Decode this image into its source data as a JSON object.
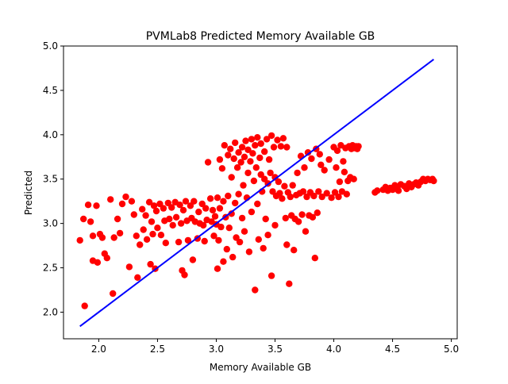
{
  "chart_data": {
    "type": "scatter",
    "title": "PVMLab8 Predicted Memory Available GB",
    "xlabel": "Memory Available GB",
    "ylabel": "Predicted",
    "xlim": [
      1.7,
      5.05
    ],
    "ylim": [
      1.7,
      5.0
    ],
    "xticks": [
      "2.0",
      "2.5",
      "3.0",
      "3.5",
      "4.0",
      "4.5",
      "5.0"
    ],
    "yticks": [
      "2.0",
      "2.5",
      "3.0",
      "3.5",
      "4.0",
      "4.5",
      "5.0"
    ],
    "grid": false,
    "legend": "none",
    "scatter_color": "#ff0000",
    "line_color": "#0000ff",
    "line": {
      "x": [
        1.84,
        4.85
      ],
      "y": [
        1.84,
        4.85
      ]
    },
    "points": [
      [
        1.84,
        2.81
      ],
      [
        1.88,
        2.07
      ],
      [
        1.87,
        3.05
      ],
      [
        1.91,
        3.21
      ],
      [
        1.93,
        3.02
      ],
      [
        1.95,
        2.86
      ],
      [
        1.95,
        2.58
      ],
      [
        1.98,
        3.2
      ],
      [
        1.99,
        2.56
      ],
      [
        2.01,
        2.88
      ],
      [
        2.03,
        2.84
      ],
      [
        2.05,
        2.66
      ],
      [
        2.07,
        2.61
      ],
      [
        2.1,
        3.27
      ],
      [
        2.12,
        2.21
      ],
      [
        2.13,
        2.84
      ],
      [
        2.16,
        3.05
      ],
      [
        2.18,
        2.89
      ],
      [
        2.2,
        3.22
      ],
      [
        2.23,
        3.3
      ],
      [
        2.26,
        2.51
      ],
      [
        2.28,
        3.25
      ],
      [
        2.3,
        3.1
      ],
      [
        2.32,
        2.86
      ],
      [
        2.33,
        2.39
      ],
      [
        2.35,
        2.76
      ],
      [
        2.37,
        3.16
      ],
      [
        2.38,
        2.93
      ],
      [
        2.4,
        3.09
      ],
      [
        2.41,
        2.82
      ],
      [
        2.43,
        3.24
      ],
      [
        2.44,
        2.54
      ],
      [
        2.45,
        3.02
      ],
      [
        2.46,
        2.88
      ],
      [
        2.47,
        3.2
      ],
      [
        2.48,
        2.49
      ],
      [
        2.49,
        3.14
      ],
      [
        2.5,
        2.95
      ],
      [
        2.52,
        3.22
      ],
      [
        2.53,
        2.87
      ],
      [
        2.55,
        3.17
      ],
      [
        2.56,
        3.03
      ],
      [
        2.57,
        2.78
      ],
      [
        2.59,
        3.23
      ],
      [
        2.6,
        3.05
      ],
      [
        2.62,
        3.18
      ],
      [
        2.63,
        2.98
      ],
      [
        2.65,
        3.24
      ],
      [
        2.66,
        3.07
      ],
      [
        2.68,
        2.79
      ],
      [
        2.69,
        3.21
      ],
      [
        2.7,
        3.0
      ],
      [
        2.71,
        2.47
      ],
      [
        2.72,
        3.15
      ],
      [
        2.73,
        2.42
      ],
      [
        2.74,
        3.25
      ],
      [
        2.75,
        3.03
      ],
      [
        2.76,
        2.81
      ],
      [
        2.78,
        3.2
      ],
      [
        2.79,
        3.06
      ],
      [
        2.8,
        2.59
      ],
      [
        2.81,
        3.25
      ],
      [
        2.82,
        3.02
      ],
      [
        2.84,
        2.83
      ],
      [
        2.85,
        3.13
      ],
      [
        2.86,
        3.0
      ],
      [
        2.88,
        3.22
      ],
      [
        2.89,
        2.98
      ],
      [
        2.9,
        2.8
      ],
      [
        2.91,
        3.17
      ],
      [
        2.92,
        3.04
      ],
      [
        2.93,
        3.69
      ],
      [
        2.95,
        3.28
      ],
      [
        2.96,
        3.02
      ],
      [
        2.97,
        3.15
      ],
      [
        2.98,
        2.86
      ],
      [
        2.99,
        3.08
      ],
      [
        3.0,
        2.99
      ],
      [
        3.01,
        2.49
      ],
      [
        3.01,
        3.29
      ],
      [
        3.02,
        2.81
      ],
      [
        3.03,
        3.17
      ],
      [
        3.03,
        3.72
      ],
      [
        3.04,
        2.96
      ],
      [
        3.05,
        3.62
      ],
      [
        3.06,
        3.25
      ],
      [
        3.06,
        2.57
      ],
      [
        3.07,
        3.88
      ],
      [
        3.08,
        3.07
      ],
      [
        3.09,
        2.71
      ],
      [
        3.1,
        3.77
      ],
      [
        3.1,
        3.31
      ],
      [
        3.11,
        2.95
      ],
      [
        3.12,
        3.84
      ],
      [
        3.13,
        3.52
      ],
      [
        3.13,
        3.11
      ],
      [
        3.14,
        2.62
      ],
      [
        3.15,
        3.73
      ],
      [
        3.16,
        3.23
      ],
      [
        3.16,
        3.91
      ],
      [
        3.17,
        2.84
      ],
      [
        3.18,
        3.63
      ],
      [
        3.19,
        3.8
      ],
      [
        3.19,
        3.33
      ],
      [
        3.2,
        2.79
      ],
      [
        3.21,
        3.69
      ],
      [
        3.22,
        3.86
      ],
      [
        3.22,
        3.06
      ],
      [
        3.23,
        3.43
      ],
      [
        3.24,
        3.75
      ],
      [
        3.24,
        2.91
      ],
      [
        3.25,
        3.93
      ],
      [
        3.26,
        3.29
      ],
      [
        3.27,
        3.83
      ],
      [
        3.27,
        3.57
      ],
      [
        3.28,
        2.68
      ],
      [
        3.29,
        3.7
      ],
      [
        3.3,
        3.95
      ],
      [
        3.3,
        3.13
      ],
      [
        3.31,
        3.79
      ],
      [
        3.32,
        3.48
      ],
      [
        3.33,
        2.25
      ],
      [
        3.33,
        3.88
      ],
      [
        3.34,
        3.63
      ],
      [
        3.35,
        3.22
      ],
      [
        3.35,
        3.97
      ],
      [
        3.36,
        2.82
      ],
      [
        3.37,
        3.74
      ],
      [
        3.38,
        3.55
      ],
      [
        3.38,
        3.9
      ],
      [
        3.39,
        3.36
      ],
      [
        3.4,
        2.72
      ],
      [
        3.41,
        3.81
      ],
      [
        3.41,
        3.5
      ],
      [
        3.42,
        3.05
      ],
      [
        3.43,
        3.95
      ],
      [
        3.44,
        3.45
      ],
      [
        3.44,
        2.87
      ],
      [
        3.45,
        3.72
      ],
      [
        3.46,
        3.57
      ],
      [
        3.47,
        2.41
      ],
      [
        3.47,
        3.99
      ],
      [
        3.48,
        3.36
      ],
      [
        3.49,
        3.86
      ],
      [
        3.5,
        3.52
      ],
      [
        3.5,
        2.98
      ],
      [
        3.51,
        3.31
      ],
      [
        3.52,
        3.94
      ],
      [
        3.53,
        3.47
      ],
      [
        3.54,
        3.34
      ],
      [
        3.55,
        3.87
      ],
      [
        3.56,
        3.28
      ],
      [
        3.57,
        3.96
      ],
      [
        3.58,
        3.42
      ],
      [
        3.59,
        3.06
      ],
      [
        3.6,
        3.86
      ],
      [
        3.6,
        2.76
      ],
      [
        3.61,
        3.35
      ],
      [
        3.62,
        2.32
      ],
      [
        3.63,
        3.3
      ],
      [
        3.64,
        3.09
      ],
      [
        3.65,
        3.43
      ],
      [
        3.66,
        2.7
      ],
      [
        3.67,
        3.05
      ],
      [
        3.68,
        3.32
      ],
      [
        3.69,
        3.57
      ],
      [
        3.7,
        3.02
      ],
      [
        3.71,
        3.34
      ],
      [
        3.72,
        3.76
      ],
      [
        3.73,
        3.1
      ],
      [
        3.74,
        3.36
      ],
      [
        3.75,
        3.63
      ],
      [
        3.76,
        2.91
      ],
      [
        3.77,
        3.3
      ],
      [
        3.78,
        3.8
      ],
      [
        3.79,
        3.09
      ],
      [
        3.8,
        3.35
      ],
      [
        3.81,
        3.73
      ],
      [
        3.82,
        3.07
      ],
      [
        3.83,
        3.31
      ],
      [
        3.84,
        2.61
      ],
      [
        3.85,
        3.84
      ],
      [
        3.86,
        3.12
      ],
      [
        3.87,
        3.36
      ],
      [
        3.88,
        3.78
      ],
      [
        3.89,
        3.66
      ],
      [
        3.9,
        3.3
      ],
      [
        3.92,
        3.6
      ],
      [
        3.94,
        3.34
      ],
      [
        3.96,
        3.72
      ],
      [
        3.98,
        3.29
      ],
      [
        4.0,
        3.86
      ],
      [
        4.01,
        3.35
      ],
      [
        4.02,
        3.63
      ],
      [
        4.03,
        3.82
      ],
      [
        4.04,
        3.3
      ],
      [
        4.05,
        3.47
      ],
      [
        4.06,
        3.88
      ],
      [
        4.07,
        3.36
      ],
      [
        4.08,
        3.7
      ],
      [
        4.09,
        3.58
      ],
      [
        4.1,
        3.85
      ],
      [
        4.11,
        3.33
      ],
      [
        4.12,
        3.48
      ],
      [
        4.13,
        3.87
      ],
      [
        4.14,
        3.52
      ],
      [
        4.15,
        3.84
      ],
      [
        4.16,
        3.88
      ],
      [
        4.17,
        3.5
      ],
      [
        4.18,
        3.85
      ],
      [
        4.19,
        3.87
      ],
      [
        4.2,
        3.84
      ],
      [
        4.21,
        3.87
      ],
      [
        4.35,
        3.35
      ],
      [
        4.37,
        3.37
      ],
      [
        4.42,
        3.38
      ],
      [
        4.44,
        3.41
      ],
      [
        4.46,
        3.37
      ],
      [
        4.48,
        3.4
      ],
      [
        4.5,
        3.38
      ],
      [
        4.52,
        3.43
      ],
      [
        4.54,
        3.4
      ],
      [
        4.55,
        3.37
      ],
      [
        4.57,
        3.44
      ],
      [
        4.6,
        3.42
      ],
      [
        4.62,
        3.39
      ],
      [
        4.64,
        3.45
      ],
      [
        4.66,
        3.41
      ],
      [
        4.68,
        3.44
      ],
      [
        4.7,
        3.46
      ],
      [
        4.72,
        3.43
      ],
      [
        4.74,
        3.47
      ],
      [
        4.76,
        3.5
      ],
      [
        4.78,
        3.48
      ],
      [
        4.8,
        3.5
      ],
      [
        4.82,
        3.49
      ],
      [
        4.84,
        3.5
      ],
      [
        4.85,
        3.48
      ]
    ]
  }
}
